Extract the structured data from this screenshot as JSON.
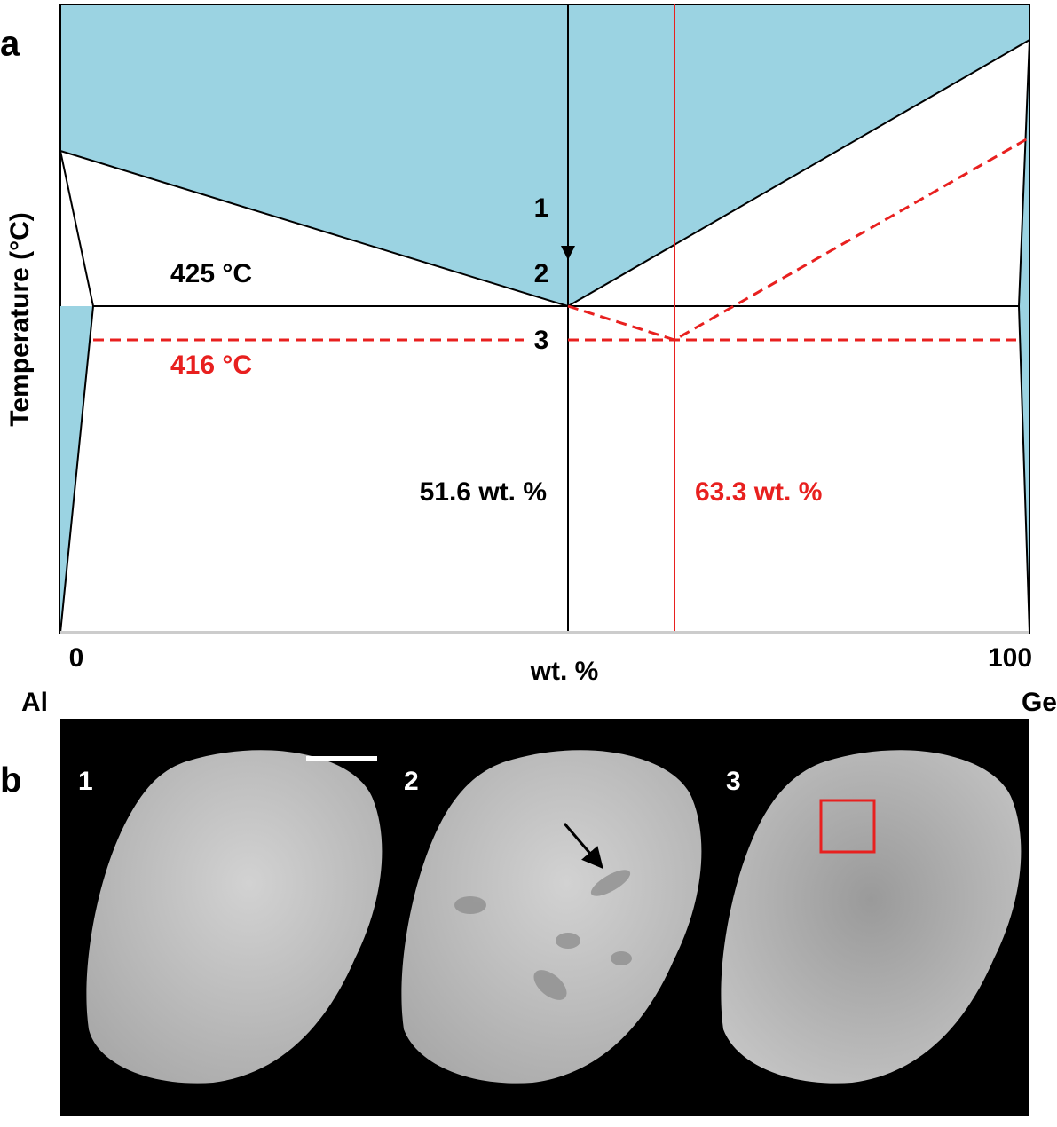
{
  "panel_a": {
    "label": "a",
    "y_axis_label": "Temperature (°C)",
    "eutectic_temperature": "425 °C",
    "shifted_eutectic_temperature": "416 °C",
    "steps": [
      "1",
      "2",
      "3"
    ],
    "eutectic_composition": "51.6 wt. %",
    "shifted_composition": "63.3 wt. %",
    "x_start": "0",
    "x_end": "100",
    "x_axis_label": "wt. %",
    "left_element": "Al",
    "right_element": "Ge"
  },
  "panel_b": {
    "label": "b",
    "images": [
      "1",
      "2",
      "3"
    ]
  }
}
